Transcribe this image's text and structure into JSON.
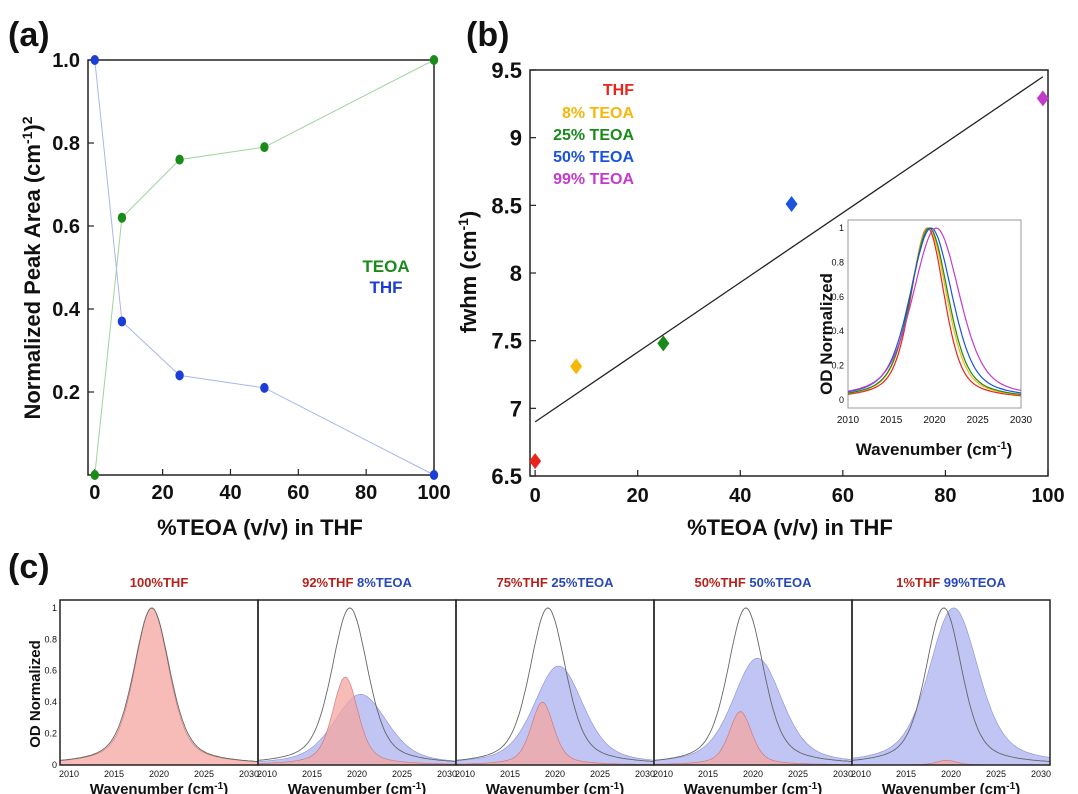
{
  "panels": {
    "a": {
      "label": "(a)",
      "xlabel": "%TEOA (v/v) in THF",
      "ylabel_main": "Normalized Peak Area (cm",
      "ylabel_sup1": "-1",
      "ylabel_close": ")",
      "ylabel_sup2": "2",
      "xticks": [
        "0",
        "20",
        "40",
        "60",
        "80",
        "100"
      ],
      "yticks": [
        "1.0",
        "0.8",
        "0.6",
        "0.4",
        "0.2"
      ],
      "legend": [
        "TEOA",
        "THF"
      ]
    },
    "b": {
      "label": "(b)",
      "xlabel": "%TEOA (v/v) in THF",
      "ylabel_main": "fwhm (cm",
      "ylabel_sup": "-1",
      "ylabel_close": ")",
      "xticks": [
        "0",
        "20",
        "40",
        "60",
        "80",
        "100"
      ],
      "yticks": [
        "9.5",
        "9",
        "8.5",
        "8",
        "7.5",
        "7",
        "6.5"
      ],
      "legend": [
        "THF",
        "8% TEOA",
        "25% TEOA",
        "50% TEOA",
        "99% TEOA"
      ],
      "inset": {
        "xlabel_main": "Wavenumber (cm",
        "xlabel_sup": "-1",
        "xlabel_close": ")",
        "ylabel": "OD Normalized",
        "xticks": [
          "2010",
          "2015",
          "2020",
          "2025",
          "2030"
        ],
        "yticks": [
          "1",
          "0.8",
          "0.6",
          "0.4",
          "0.2",
          "0"
        ]
      }
    },
    "c": {
      "label": "(c)",
      "ylabel": "OD Normalized",
      "xlabel_main": "Wavenumber (cm",
      "xlabel_sup": "-1",
      "xlabel_close": ")",
      "xticks": [
        "2010",
        "2015",
        "2020",
        "2025",
        "2030"
      ],
      "yticks": [
        "1",
        "0.8",
        "0.6",
        "0.4",
        "0.2",
        "0"
      ],
      "titles": [
        {
          "red": "100%THF",
          "blue": ""
        },
        {
          "red": "92%THF",
          "blue": "8%TEOA"
        },
        {
          "red": "75%THF",
          "blue": "25%TEOA"
        },
        {
          "red": "50%THF",
          "blue": "50%TEOA"
        },
        {
          "red": "1%THF",
          "blue": "99%TEOA"
        }
      ]
    }
  },
  "colors": {
    "teoa_green": "#1a8a1a",
    "thf_blue": "#1c3ed6",
    "thf_red": "#e8241b",
    "teoa8_orange": "#f5b70a",
    "teoa25_green": "#1a8a1a",
    "teoa50_blue": "#1c52e0",
    "teoa99_purple": "#c23cc9",
    "title_red": "#b5221c",
    "title_blue": "#2747b8",
    "fill_red": "#f4a6a0",
    "fill_blue": "#b9bff2"
  },
  "chart_data": [
    {
      "type": "line",
      "panel": "a",
      "x": [
        0,
        8,
        25,
        50,
        100
      ],
      "series": [
        {
          "name": "TEOA",
          "values": [
            0.0,
            0.62,
            0.76,
            0.79,
            1.0
          ]
        },
        {
          "name": "THF",
          "values": [
            1.0,
            0.37,
            0.24,
            0.21,
            0.0
          ]
        }
      ],
      "xlim": [
        -2,
        100
      ],
      "ylim": [
        0,
        1.0
      ],
      "grid": false,
      "legend_position": "middle-right"
    },
    {
      "type": "scatter",
      "panel": "b",
      "points": [
        {
          "name": "THF",
          "x": 0,
          "y": 6.61
        },
        {
          "name": "8% TEOA",
          "x": 8,
          "y": 7.31
        },
        {
          "name": "25% TEOA",
          "x": 25,
          "y": 7.48
        },
        {
          "name": "50% TEOA",
          "x": 50,
          "y": 8.51
        },
        {
          "name": "99% TEOA",
          "x": 99,
          "y": 9.29
        }
      ],
      "fit_line": {
        "x": [
          0,
          99
        ],
        "y": [
          6.9,
          9.45
        ]
      },
      "xlim": [
        -1,
        100
      ],
      "ylim": [
        6.5,
        9.5
      ],
      "grid": false,
      "legend_position": "top-left"
    },
    {
      "type": "line",
      "panel": "b-inset",
      "x_range": [
        2010,
        2030
      ],
      "ylim": [
        0,
        1
      ],
      "series": [
        {
          "name": "THF",
          "center": 2019.2,
          "width": 2.6,
          "shape": "lorentzian-gaussian"
        },
        {
          "name": "8% TEOA",
          "center": 2019.3,
          "width": 2.85
        },
        {
          "name": "25% TEOA",
          "center": 2019.4,
          "width": 2.95
        },
        {
          "name": "50% TEOA",
          "center": 2019.6,
          "width": 3.3
        },
        {
          "name": "99% TEOA",
          "center": 2020.2,
          "width": 3.65
        }
      ]
    },
    {
      "type": "area",
      "panel": "c",
      "x_range": [
        2009,
        2031
      ],
      "ylim": [
        0,
        1.05
      ],
      "subplots": [
        {
          "red_center": 2019.2,
          "red_amp": 1.0,
          "red_width": 2.6,
          "blue_center": 2020.3,
          "blue_amp": 0.0,
          "blue_width": 3.6
        },
        {
          "red_center": 2018.7,
          "red_amp": 0.56,
          "red_width": 1.9,
          "blue_center": 2020.4,
          "blue_amp": 0.45,
          "blue_width": 4.0
        },
        {
          "red_center": 2018.6,
          "red_amp": 0.4,
          "red_width": 1.7,
          "blue_center": 2020.4,
          "blue_amp": 0.63,
          "blue_width": 3.7
        },
        {
          "red_center": 2018.6,
          "red_amp": 0.34,
          "red_width": 1.7,
          "blue_center": 2020.5,
          "blue_amp": 0.68,
          "blue_width": 3.7
        },
        {
          "red_center": 2019.5,
          "red_amp": 0.03,
          "red_width": 1.5,
          "blue_center": 2020.3,
          "blue_amp": 1.0,
          "blue_width": 3.7
        }
      ],
      "reference_peak": {
        "center": 2019.2,
        "amp": 1.0,
        "width": 2.7
      }
    }
  ]
}
